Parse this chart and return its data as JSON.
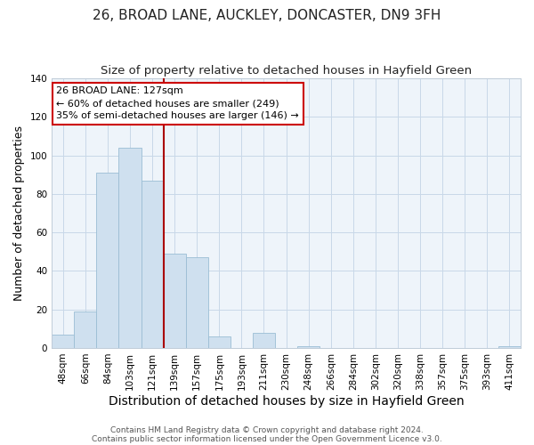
{
  "title": "26, BROAD LANE, AUCKLEY, DONCASTER, DN9 3FH",
  "subtitle": "Size of property relative to detached houses in Hayfield Green",
  "xlabel": "Distribution of detached houses by size in Hayfield Green",
  "ylabel": "Number of detached properties",
  "bar_labels": [
    "48sqm",
    "66sqm",
    "84sqm",
    "103sqm",
    "121sqm",
    "139sqm",
    "157sqm",
    "175sqm",
    "193sqm",
    "211sqm",
    "230sqm",
    "248sqm",
    "266sqm",
    "284sqm",
    "302sqm",
    "320sqm",
    "338sqm",
    "357sqm",
    "375sqm",
    "393sqm",
    "411sqm"
  ],
  "bar_values": [
    7,
    19,
    91,
    104,
    87,
    49,
    47,
    6,
    0,
    8,
    0,
    1,
    0,
    0,
    0,
    0,
    0,
    0,
    0,
    0,
    1
  ],
  "bar_color": "#cfe0ef",
  "bar_edge_color": "#9bbdd4",
  "vline_bar_index": 4,
  "vline_color": "#aa0000",
  "ylim": [
    0,
    140
  ],
  "yticks": [
    0,
    20,
    40,
    60,
    80,
    100,
    120,
    140
  ],
  "annotation_text": "26 BROAD LANE: 127sqm\n← 60% of detached houses are smaller (249)\n35% of semi-detached houses are larger (146) →",
  "annotation_box_edge": "#cc0000",
  "footer1": "Contains HM Land Registry data © Crown copyright and database right 2024.",
  "footer2": "Contains public sector information licensed under the Open Government Licence v3.0.",
  "background_color": "#ffffff",
  "plot_bg_color": "#eef4fa",
  "title_fontsize": 11,
  "subtitle_fontsize": 9.5,
  "xlabel_fontsize": 10,
  "ylabel_fontsize": 9,
  "tick_fontsize": 7.5,
  "footer_fontsize": 6.5
}
